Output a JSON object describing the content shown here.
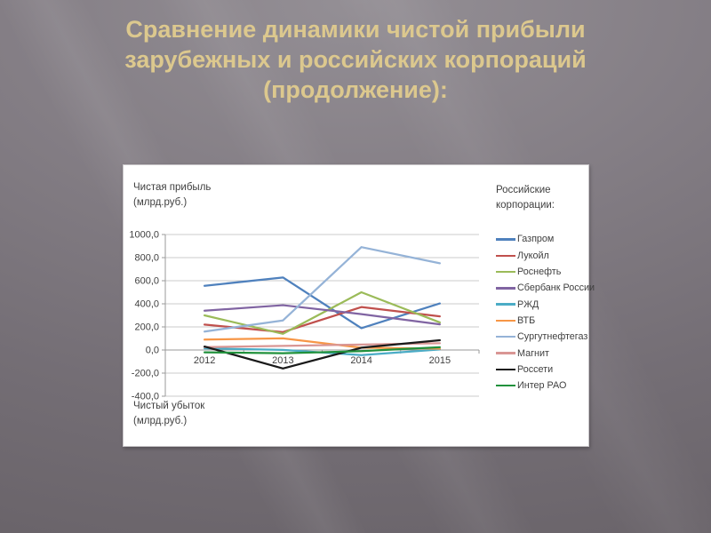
{
  "slide": {
    "title_lines": [
      "Сравнение динамики чистой прибыли",
      "зарубежных и российских корпораций",
      "(продолжение):"
    ],
    "title_color": "#dcc88e"
  },
  "chart": {
    "y_axis_title": "Чистая прибыль\n(млрд.руб.)",
    "loss_axis_title": "Чистый убыток\n(млрд.руб.)",
    "legend_title": "Российские\nкорпорации:"
  },
  "chart_data": {
    "type": "line",
    "title": "",
    "categories": [
      "2012",
      "2013",
      "2014",
      "2015"
    ],
    "series": [
      {
        "name": "Газпром",
        "color": "#4F81BD",
        "values": [
          556,
          628,
          189,
          403
        ]
      },
      {
        "name": "Лукойл",
        "color": "#C0504D",
        "values": [
          220,
          155,
          372,
          291
        ]
      },
      {
        "name": "Роснефть",
        "color": "#9BBB59",
        "values": [
          300,
          140,
          500,
          239
        ]
      },
      {
        "name": "Сбербанк России",
        "color": "#8064A2",
        "values": [
          340,
          388,
          311,
          222
        ]
      },
      {
        "name": "РЖД",
        "color": "#4BACC6",
        "values": [
          14,
          1,
          -44,
          5
        ]
      },
      {
        "name": "ВТБ",
        "color": "#F79646",
        "values": [
          90,
          101,
          20,
          12
        ]
      },
      {
        "name": "Сургутнефтегаз",
        "color": "#95B3D7",
        "values": [
          160,
          256,
          891,
          751
        ]
      },
      {
        "name": "Магнит",
        "color": "#D99694",
        "values": [
          25,
          36,
          47,
          59
        ]
      },
      {
        "name": "Россети",
        "color": "#1A1A1A",
        "values": [
          30,
          -160,
          20,
          85
        ]
      },
      {
        "name": "Интер РАО",
        "color": "#21913C",
        "values": [
          -20,
          -28,
          -10,
          24
        ]
      }
    ],
    "xlabel": "",
    "ylabel": "Чистая прибыль (млрд.руб.)",
    "ylabel_negative": "Чистый убыток (млрд.руб.)",
    "ylim": [
      -400,
      1000
    ],
    "yticks": [
      1000,
      800,
      600,
      400,
      200,
      0,
      -200,
      -400
    ],
    "ytick_labels": [
      "1000,0",
      "800,0",
      "600,0",
      "400,0",
      "200,0",
      "0,0",
      "-200,0",
      "-400,0"
    ],
    "grid": true,
    "legend_position": "right",
    "legend_title": "Российские корпорации:"
  }
}
